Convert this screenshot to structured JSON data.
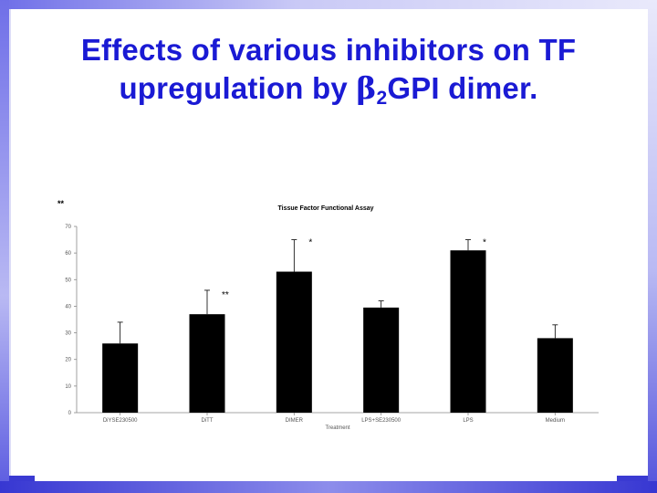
{
  "slide": {
    "title_line1": "Effects of various inhibitors on TF",
    "title_line2_prefix": "upregulation by ",
    "title_beta": "β",
    "title_sub": "2",
    "title_line2_suffix": "GPI dimer.",
    "panel_marker": "**"
  },
  "colors": {
    "title": "#1a1ad4",
    "frame": "#4a4ad8",
    "bars": "#000000"
  },
  "chart_data": {
    "type": "bar",
    "title": "Tissue Factor Functional Assay",
    "xlabel": "Treatment",
    "ylabel": "",
    "ylim": [
      0,
      70
    ],
    "yticks": [
      0,
      10,
      20,
      30,
      40,
      50,
      60,
      70
    ],
    "grid": false,
    "categories": [
      "DiYSE230500",
      "DiTT",
      "DIMER",
      "LPS+SE230500",
      "LPS",
      "Medium"
    ],
    "values": [
      26,
      37,
      53,
      39.5,
      61,
      28
    ],
    "errors": [
      8,
      9,
      12,
      2.5,
      4,
      5
    ],
    "annotations": [
      "",
      "**",
      "*",
      "",
      "*",
      ""
    ]
  }
}
